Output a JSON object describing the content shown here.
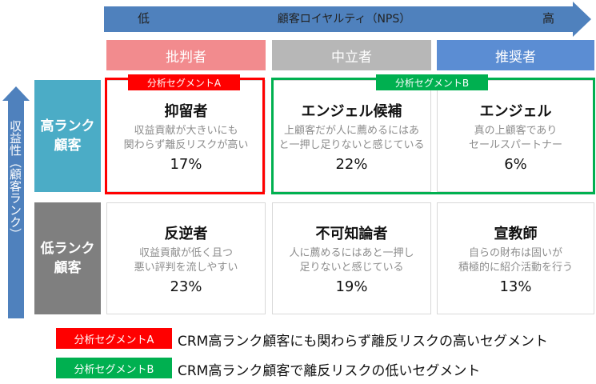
{
  "axis_x": {
    "low": "低",
    "label": "顧客ロイヤルティ（NPS）",
    "high": "高"
  },
  "axis_y": {
    "label": "収益性（顧客ランク）"
  },
  "columns": [
    "批判者",
    "中立者",
    "推奨者"
  ],
  "rows": [
    [
      "高ランク",
      "顧客"
    ],
    [
      "低ランク",
      "顧客"
    ]
  ],
  "segments": [
    {
      "label": "分析セグメントA",
      "description": "CRM高ランク顧客にも関わらず離反リスクの高いセグメント"
    },
    {
      "label": "分析セグメントB",
      "description": "CRM高ランク顧客で離反リスクの低いセグメント"
    }
  ],
  "cells": [
    [
      {
        "title": "抑留者",
        "lines": [
          "収益貢献が大きいにも",
          "関わらず離反リスクが高い"
        ],
        "share": "17%"
      },
      {
        "title": "エンジェル候補",
        "lines": [
          "上顧客だが人に薦めるにはあ",
          "と一押し足りないと感じている"
        ],
        "share": "22%"
      },
      {
        "title": "エンジェル",
        "lines": [
          "真の上顧客であり",
          "セールスパートナー"
        ],
        "share": "6%"
      }
    ],
    [
      {
        "title": "反逆者",
        "lines": [
          "収益貢献が低く且つ",
          "悪い評判を流しやすい"
        ],
        "share": "23%"
      },
      {
        "title": "不可知論者",
        "lines": [
          "人に薦めるにはあと一押し",
          "足りないと感じている"
        ],
        "share": "19%"
      },
      {
        "title": "宣教師",
        "lines": [
          "自らの財布は固いが",
          "積極的に紹介活動を行う"
        ],
        "share": "13%"
      }
    ]
  ]
}
